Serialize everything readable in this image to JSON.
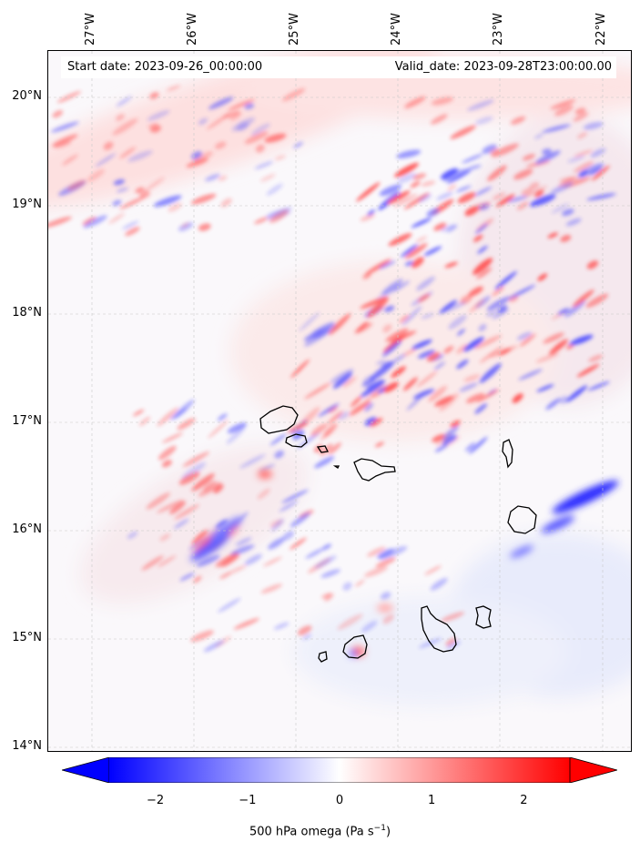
{
  "map": {
    "start_date": "Start date: 2023-09-26_00:00:00",
    "valid_date": "Valid_date: 2023-09-28T23:00:00.00",
    "lon_labels": [
      "27°W",
      "26°W",
      "25°W",
      "24°W",
      "23°W",
      "22°W"
    ],
    "lat_labels": [
      "20°N",
      "19°N",
      "18°N",
      "17°N",
      "16°N",
      "15°N",
      "14°N"
    ],
    "lon_range": [
      -27.4,
      -21.8
    ],
    "lat_range": [
      13.95,
      20.45
    ],
    "variable": "500 hPa omega",
    "colorbar": {
      "label": "500 hPa omega (Pa s",
      "label_sup": "−1",
      "label_end": ")",
      "ticks": [
        "−2",
        "−1",
        "0",
        "1",
        "2"
      ],
      "range": [
        -2.5,
        2.5
      ],
      "colormap": "bwr",
      "colors": {
        "negative": "#0000ff",
        "zero": "#ffffff",
        "positive": "#ff0000"
      }
    },
    "islands": [
      "Santo Antão",
      "São Vicente",
      "Santa Luzia",
      "São Nicolau",
      "Sal",
      "Boa Vista",
      "Maio",
      "Santiago",
      "Fogo",
      "Brava"
    ]
  }
}
